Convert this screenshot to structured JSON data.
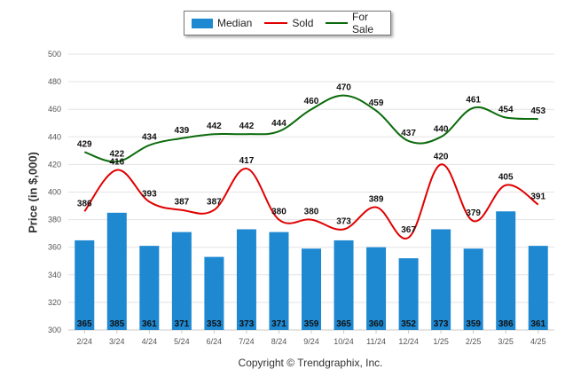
{
  "chart_data": {
    "type": "bar",
    "categories": [
      "2/24",
      "3/24",
      "4/24",
      "5/24",
      "6/24",
      "7/24",
      "8/24",
      "9/24",
      "10/24",
      "11/24",
      "12/24",
      "1/25",
      "2/25",
      "3/25",
      "4/25"
    ],
    "series": [
      {
        "name": "Median",
        "type": "bar",
        "values": [
          365,
          385,
          361,
          371,
          353,
          373,
          371,
          359,
          365,
          360,
          352,
          373,
          359,
          386,
          361
        ]
      },
      {
        "name": "Sold",
        "type": "line",
        "values": [
          386,
          416,
          393,
          387,
          387,
          417,
          380,
          380,
          373,
          389,
          367,
          420,
          379,
          405,
          391
        ]
      },
      {
        "name": "For Sale",
        "type": "line",
        "values": [
          429,
          422,
          434,
          439,
          442,
          442,
          444,
          460,
          470,
          459,
          437,
          440,
          461,
          454,
          453
        ]
      }
    ],
    "ylabel": "Price (in $,000)",
    "xlabel": "",
    "ylim": [
      300,
      500
    ],
    "yticks": [
      300,
      320,
      340,
      360,
      380,
      400,
      420,
      440,
      460,
      480,
      500
    ],
    "grid": true,
    "legend_position": "top-center"
  },
  "legend": {
    "median_label": "Median",
    "sold_label": "Sold",
    "forsale_label": "For Sale"
  },
  "colors": {
    "bar": "#1e88d1",
    "sold": "#e00000",
    "forsale": "#0b6b0b",
    "grid": "#e3e3e3"
  },
  "footer": {
    "copyright": "Copyright © Trendgraphix, Inc."
  }
}
